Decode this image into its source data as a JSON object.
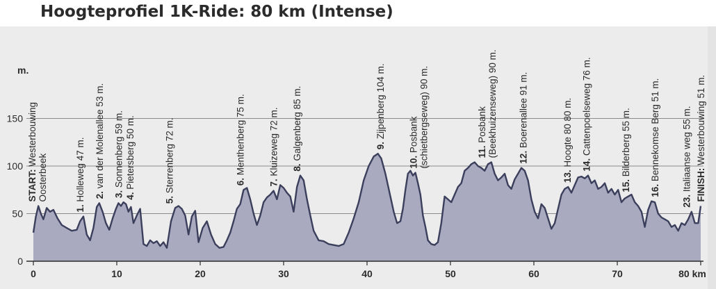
{
  "chart_data": {
    "type": "area",
    "title": "Hoogteprofiel 1K-Ride: 80 km (Intense)",
    "y_unit": "m.",
    "x_unit": "km",
    "xlim": [
      0,
      80
    ],
    "ylim": [
      0,
      150
    ],
    "x_ticks": [
      0,
      10,
      20,
      30,
      40,
      50,
      60,
      70,
      80
    ],
    "x_tick_labels": [
      "0",
      "10",
      "20",
      "30",
      "40",
      "50",
      "60",
      "70",
      "80 km"
    ],
    "y_ticks": [
      0,
      50,
      100,
      150
    ],
    "y_tick_labels": [
      "0",
      "50",
      "100",
      "150"
    ],
    "grid": true,
    "colors": {
      "fill": "#a9a9c0",
      "line": "#3b3f5c",
      "background": "#ececec",
      "grid": "#8a8a8a"
    },
    "series": [
      {
        "x": [
          0,
          0.3,
          0.6,
          0.9,
          1.2,
          1.6,
          2.0,
          2.4,
          2.9,
          3.4,
          4.0,
          4.6,
          5.2,
          5.6,
          6.0,
          6.4,
          6.8,
          7.2,
          7.6,
          7.9,
          8.3,
          8.7,
          9.1,
          9.5,
          9.9,
          10.2,
          10.5,
          10.8,
          11.1,
          11.4,
          11.7,
          12.0,
          12.4,
          12.8,
          13.2,
          13.6,
          14.0,
          14.4,
          14.8,
          15.2,
          15.6,
          16.0,
          16.5,
          17.0,
          17.4,
          17.8,
          18.2,
          18.6,
          19.0,
          19.4,
          19.8,
          20.3,
          20.8,
          21.3,
          21.8,
          22.3,
          22.8,
          23.2,
          23.6,
          24.0,
          24.4,
          24.8,
          25.2,
          25.6,
          26.0,
          26.4,
          26.8,
          27.2,
          27.6,
          28.0,
          28.4,
          28.8,
          29.2,
          29.6,
          30.0,
          30.4,
          30.8,
          31.2,
          31.6,
          32.0,
          32.4,
          32.8,
          33.2,
          33.6,
          34.2,
          34.8,
          35.4,
          36.0,
          36.6,
          37.2,
          37.8,
          38.4,
          39.0,
          39.6,
          40.2,
          40.8,
          41.3,
          41.7,
          42.2,
          42.7,
          43.2,
          43.6,
          44.0,
          44.3,
          44.6,
          44.9,
          45.2,
          45.5,
          45.8,
          46.1,
          46.4,
          46.7,
          47.0,
          47.3,
          47.7,
          48.1,
          48.5,
          48.9,
          49.3,
          49.7,
          50.1,
          50.5,
          50.9,
          51.3,
          51.7,
          52.1,
          52.5,
          52.9,
          53.3,
          53.7,
          54.1,
          54.5,
          54.9,
          55.3,
          55.7,
          56.1,
          56.5,
          56.9,
          57.3,
          57.7,
          58.1,
          58.5,
          58.9,
          59.3,
          59.7,
          60.1,
          60.5,
          60.9,
          61.3,
          61.7,
          62.1,
          62.5,
          62.9,
          63.3,
          63.7,
          64.1,
          64.5,
          64.9,
          65.3,
          65.7,
          66.1,
          66.5,
          66.9,
          67.3,
          67.7,
          68.1,
          68.5,
          68.9,
          69.3,
          69.7,
          70.1,
          70.5,
          70.9,
          71.3,
          71.7,
          72.1,
          72.5,
          72.9,
          73.3,
          73.7,
          74.1,
          74.5,
          74.9,
          75.3,
          75.7,
          76.1,
          76.5,
          76.9,
          77.3,
          77.7,
          78.1,
          78.5,
          78.9,
          79.3,
          79.7,
          80.0
        ],
        "y": [
          30,
          47,
          58,
          50,
          44,
          56,
          52,
          54,
          45,
          38,
          35,
          32,
          33,
          42,
          47,
          28,
          22,
          35,
          57,
          61,
          52,
          40,
          33,
          45,
          55,
          61,
          58,
          62,
          60,
          52,
          57,
          40,
          48,
          55,
          18,
          16,
          22,
          19,
          21,
          16,
          20,
          14,
          42,
          56,
          58,
          55,
          48,
          28,
          47,
          53,
          20,
          35,
          42,
          28,
          18,
          14,
          15,
          22,
          30,
          42,
          55,
          60,
          75,
          77,
          65,
          50,
          38,
          48,
          62,
          67,
          70,
          74,
          65,
          80,
          77,
          72,
          68,
          52,
          78,
          90,
          85,
          65,
          48,
          32,
          22,
          21,
          18,
          17,
          16,
          18,
          30,
          45,
          62,
          85,
          100,
          110,
          113,
          108,
          92,
          72,
          52,
          40,
          42,
          55,
          75,
          92,
          95,
          90,
          93,
          82,
          70,
          48,
          36,
          22,
          18,
          17,
          20,
          40,
          68,
          65,
          62,
          70,
          78,
          82,
          95,
          98,
          102,
          104,
          100,
          98,
          95,
          102,
          104,
          92,
          85,
          88,
          92,
          80,
          76,
          86,
          92,
          98,
          95,
          85,
          65,
          52,
          45,
          60,
          56,
          45,
          34,
          40,
          55,
          70,
          76,
          78,
          72,
          80,
          88,
          89,
          87,
          90,
          82,
          85,
          76,
          78,
          82,
          72,
          76,
          70,
          75,
          62,
          66,
          68,
          70,
          62,
          58,
          52,
          36,
          54,
          63,
          62,
          50,
          46,
          44,
          42,
          36,
          38,
          32,
          40,
          38,
          44,
          52,
          40,
          40,
          58
        ]
      }
    ],
    "landmarks": [
      {
        "km": 0.5,
        "num": "START:",
        "label": "Westerbouwing",
        "sub": "Oosterbeek"
      },
      {
        "km": 5.6,
        "num": "1.",
        "label": "Holleweg 47 m."
      },
      {
        "km": 7.9,
        "num": "2.",
        "label": "van der Molenallee 53 m."
      },
      {
        "km": 10.2,
        "num": "3.",
        "label": "Sonnenberg 59 m."
      },
      {
        "km": 11.6,
        "num": "4.",
        "label": "Pietersberg 50 m."
      },
      {
        "km": 16.3,
        "num": "5.",
        "label": "Sterrenberg 72 m."
      },
      {
        "km": 24.8,
        "num": "6.",
        "label": "Menthenberg 75 m."
      },
      {
        "km": 28.8,
        "num": "7.",
        "label": "Kluizeweg 72 m."
      },
      {
        "km": 31.6,
        "num": "8.",
        "label": "Galgenberg 85 m."
      },
      {
        "km": 41.6,
        "num": "9.",
        "label": "Zijpenberg 104 m."
      },
      {
        "km": 46.2,
        "num": "10.",
        "label": "Posbank",
        "sub": "(schietbergseweg) 90 m."
      },
      {
        "km": 54.4,
        "num": "11.",
        "label": "Posbank",
        "sub": "(Beekhuizenseweg) 90 m."
      },
      {
        "km": 58.7,
        "num": "12.",
        "label": "Boerenallee 91 m."
      },
      {
        "km": 64.0,
        "num": "13.",
        "label": "Hoogte 80 80 m."
      },
      {
        "km": 66.3,
        "num": "14.",
        "label": "Cattenpoelseweg 76 m."
      },
      {
        "km": 71.0,
        "num": "15.",
        "label": "Bilderberg 55 m."
      },
      {
        "km": 74.5,
        "num": "16.",
        "label": "Bennekomse Berg 51 m."
      },
      {
        "km": 78.3,
        "num": "23.",
        "label": "Italiaanse weg 55 m."
      },
      {
        "km": 80.0,
        "num": "FINISH:",
        "label": "Westerbouwing 51 m."
      }
    ]
  }
}
